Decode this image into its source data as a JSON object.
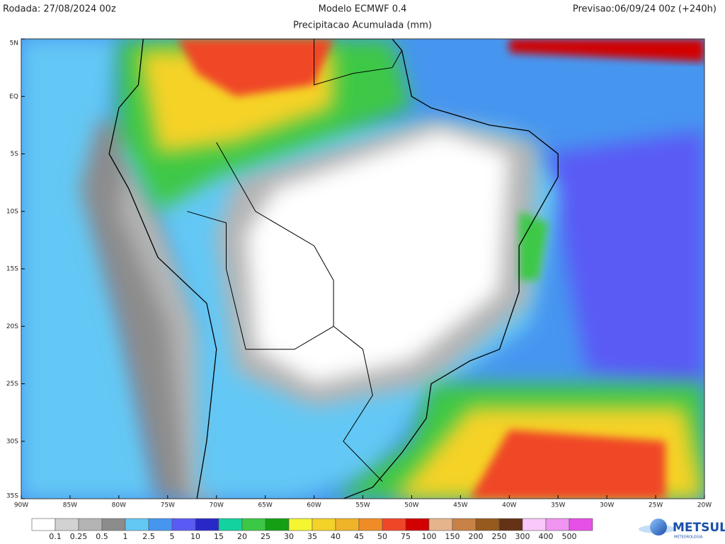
{
  "header": {
    "run": "Rodada: 27/08/2024 00z",
    "model": "Modelo ECMWF 0.4",
    "subtitle": "Precipitacao Acumulada (mm)",
    "forecast": "Previsao:06/09/24 00z (+240h)"
  },
  "map": {
    "latitude_labels": [
      "5N",
      "EQ",
      "5S",
      "10S",
      "15S",
      "20S",
      "25S",
      "30S",
      "35S"
    ],
    "longitude_labels": [
      "90W",
      "85W",
      "80W",
      "75W",
      "70W",
      "65W",
      "60W",
      "55W",
      "50W",
      "45W",
      "40W",
      "35W",
      "30W",
      "25W",
      "20W"
    ]
  },
  "legend": {
    "labels": [
      "0.1",
      "0.25",
      "0.5",
      "1",
      "2.5",
      "5",
      "10",
      "15",
      "20",
      "25",
      "30",
      "35",
      "40",
      "45",
      "50",
      "75",
      "100",
      "150",
      "200",
      "250",
      "300",
      "400",
      "500"
    ],
    "colors": [
      "#ffffff",
      "#d2d2d2",
      "#b4b4b4",
      "#8c8c8c",
      "#64c8f5",
      "#4696f0",
      "#5a5af5",
      "#2828c8",
      "#14d2a0",
      "#3cc846",
      "#14a014",
      "#f5f532",
      "#f5d228",
      "#f0b428",
      "#f08c28",
      "#f04628",
      "#d20000",
      "#e6b48c",
      "#c88246",
      "#965a1e",
      "#643214",
      "#fac8fa",
      "#f096f0",
      "#e650e6",
      "#a000a0"
    ]
  },
  "logo": {
    "name": "METSUL",
    "tagline": "METEOROLOGIA"
  }
}
